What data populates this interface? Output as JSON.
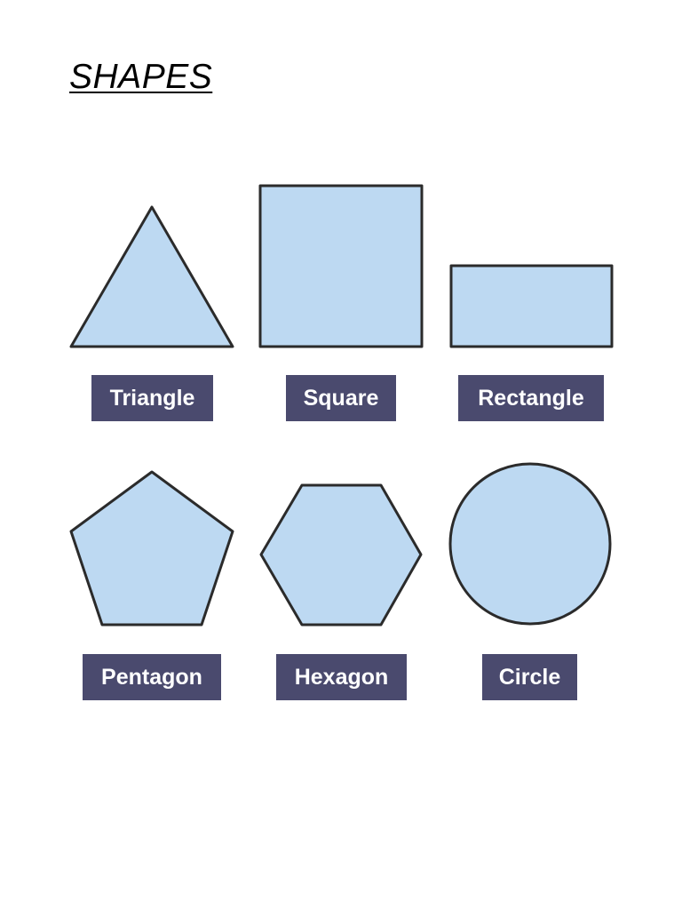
{
  "page": {
    "title": "SHAPES"
  },
  "colors": {
    "shape_fill": "#bdd9f2",
    "shape_stroke": "#2b2b2b",
    "label_background": "#4a4a6e",
    "label_text": "#ffffff"
  },
  "shapes": [
    {
      "id": "triangle",
      "label": "Triangle"
    },
    {
      "id": "square",
      "label": "Square"
    },
    {
      "id": "rectangle",
      "label": "Rectangle"
    },
    {
      "id": "pentagon",
      "label": "Pentagon"
    },
    {
      "id": "hexagon",
      "label": "Hexagon"
    },
    {
      "id": "circle",
      "label": "Circle"
    }
  ]
}
